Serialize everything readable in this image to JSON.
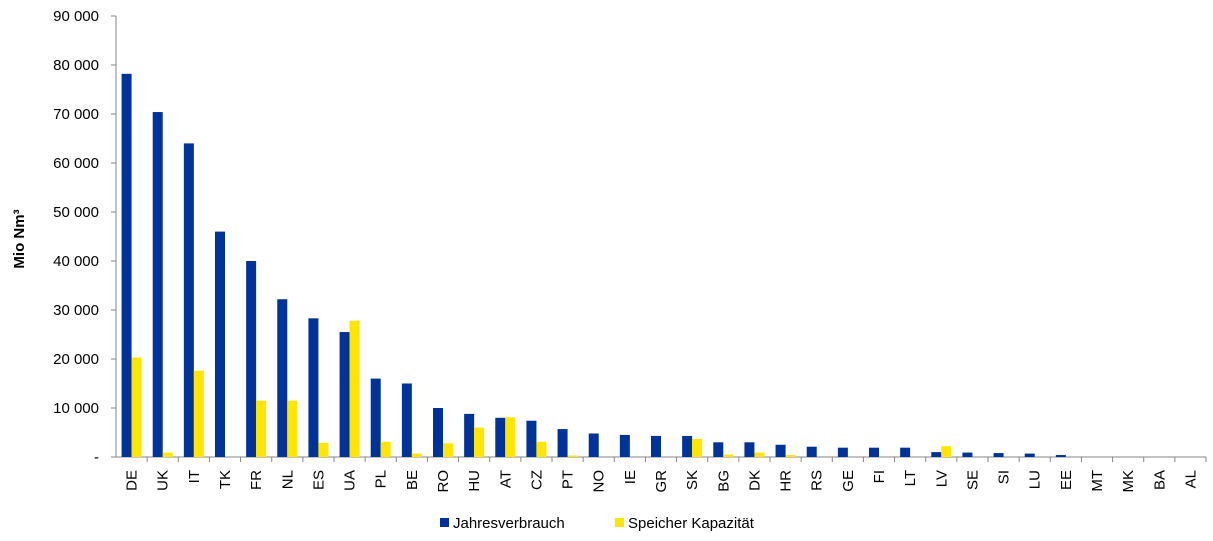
{
  "chart_data": {
    "type": "bar",
    "ylabel": "Mio Nm³",
    "ylim": [
      0,
      90000
    ],
    "yticks": [
      0,
      10000,
      20000,
      30000,
      40000,
      50000,
      60000,
      70000,
      80000,
      90000
    ],
    "ytick_labels": [
      "-",
      "10 000",
      "20 000",
      "30 000",
      "40 000",
      "50 000",
      "60 000",
      "70 000",
      "80 000",
      "90 000"
    ],
    "grid": false,
    "legend_position": "bottom",
    "categories": [
      "DE",
      "UK",
      "IT",
      "TK",
      "FR",
      "NL",
      "ES",
      "UA",
      "PL",
      "BE",
      "RO",
      "HU",
      "AT",
      "CZ",
      "PT",
      "NO",
      "IE",
      "GR",
      "SK",
      "BG",
      "DK",
      "HR",
      "RS",
      "GE",
      "FI",
      "LT",
      "LV",
      "SE",
      "SI",
      "LU",
      "EE",
      "MT",
      "MK",
      "BA",
      "AL"
    ],
    "series": [
      {
        "name": "Jahresverbrauch",
        "color": "#003399",
        "values": [
          78200,
          70400,
          64000,
          46000,
          40000,
          32200,
          28300,
          25500,
          16000,
          15000,
          10000,
          8800,
          8000,
          7400,
          5700,
          4800,
          4500,
          4300,
          4300,
          3000,
          3000,
          2500,
          2100,
          1900,
          1900,
          1900,
          1000,
          900,
          800,
          700,
          400,
          0,
          0,
          0,
          0
        ]
      },
      {
        "name": "Speicher Kapazität",
        "color": "#ffe600",
        "values": [
          20300,
          900,
          17600,
          0,
          11500,
          11500,
          2900,
          27800,
          3100,
          700,
          2800,
          6000,
          8100,
          3100,
          300,
          0,
          0,
          0,
          3700,
          500,
          900,
          400,
          0,
          0,
          0,
          0,
          2200,
          0,
          0,
          0,
          0,
          0,
          0,
          0,
          0
        ]
      }
    ]
  }
}
